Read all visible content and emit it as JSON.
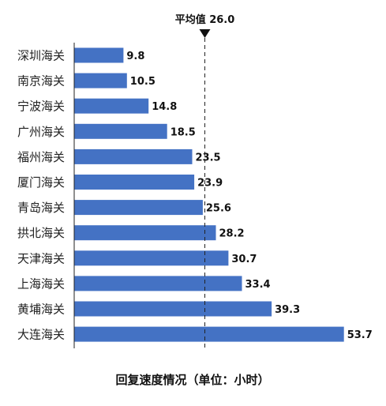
{
  "chart_data": {
    "type": "bar",
    "orientation": "horizontal",
    "categories": [
      "深圳海关",
      "南京海关",
      "宁波海关",
      "广州海关",
      "福州海关",
      "厦门海关",
      "青岛海关",
      "拱北海关",
      "天津海关",
      "上海海关",
      "黄埔海关",
      "大连海关"
    ],
    "values": [
      9.8,
      10.5,
      14.8,
      18.5,
      23.5,
      23.9,
      25.6,
      28.2,
      30.7,
      33.4,
      39.3,
      53.7
    ],
    "value_labels": [
      "9.8",
      "10.5",
      "14.8",
      "18.5",
      "23.5",
      "23.9",
      "25.6",
      "28.2",
      "30.7",
      "33.4",
      "39.3",
      "53.7"
    ],
    "xlim": [
      0,
      55
    ],
    "reference_line": {
      "value": 26.0,
      "label": "平均值 26.0",
      "style": "dashed"
    },
    "xlabel": "回复速度情况（单位：小时）",
    "ylabel": "",
    "title": "",
    "grid": false,
    "legend": "none",
    "bar_color": "#4472C4"
  }
}
